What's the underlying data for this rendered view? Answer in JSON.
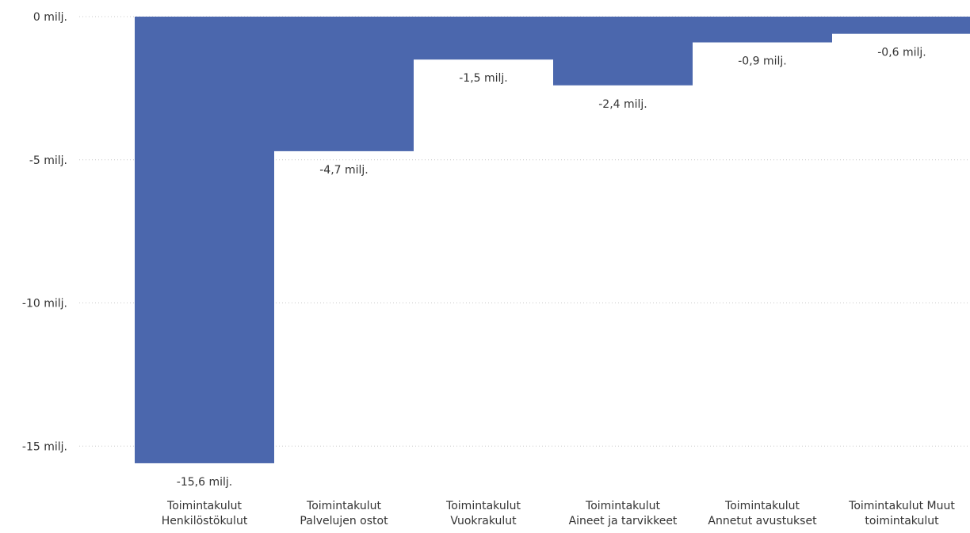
{
  "chart_data": {
    "type": "bar",
    "subtype": "waterfall",
    "title": "",
    "xlabel": "",
    "ylabel": "",
    "ylim": [
      -15.6,
      0
    ],
    "y_ticks": [
      {
        "value": 0,
        "label": "0 milj."
      },
      {
        "value": -5,
        "label": "-5 milj."
      },
      {
        "value": -10,
        "label": "-10 milj."
      },
      {
        "value": -15,
        "label": "-15 milj."
      }
    ],
    "grid": "dotted horizontal",
    "bar_color": "#4b67ad",
    "gridline_color": "#c8c8c8",
    "categories": [
      [
        "Toimintakulut",
        "Henkilöstökulut"
      ],
      [
        "Toimintakulut",
        "Palvelujen ostot"
      ],
      [
        "Toimintakulut",
        "Vuokrakulut"
      ],
      [
        "Toimintakulut",
        "Aineet ja tarvikkeet"
      ],
      [
        "Toimintakulut",
        "Annetut avustukset"
      ],
      [
        "Toimintakulut Muut",
        "toimintakulut"
      ]
    ],
    "bars": [
      {
        "start": 0,
        "end": -15.6,
        "value": -15.6,
        "label": "-15,6 milj."
      },
      {
        "start": 0,
        "end": -4.7,
        "value": -4.7,
        "label": "-4,7 milj."
      },
      {
        "start": 0,
        "end": -1.5,
        "value": -1.5,
        "label": "-1,5 milj."
      },
      {
        "start": 0,
        "end": -2.4,
        "value": -2.4,
        "label": "-2,4 milj."
      },
      {
        "start": 0,
        "end": -0.9,
        "value": -0.9,
        "label": "-0,9 milj."
      },
      {
        "start": 0,
        "end": -0.6,
        "value": -0.6,
        "label": "-0,6 milj."
      }
    ]
  }
}
